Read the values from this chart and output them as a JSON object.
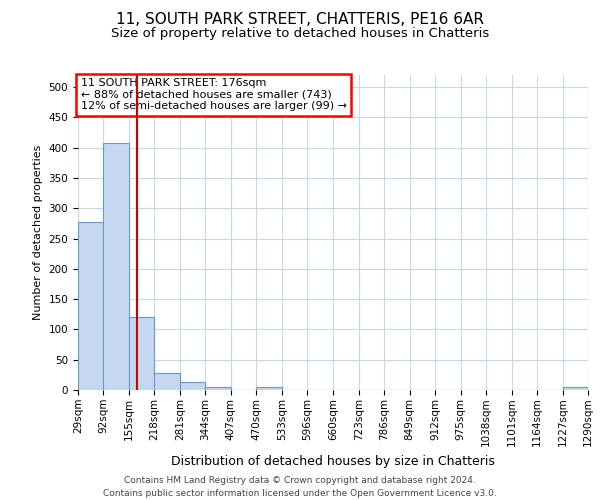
{
  "title1": "11, SOUTH PARK STREET, CHATTERIS, PE16 6AR",
  "title2": "Size of property relative to detached houses in Chatteris",
  "xlabel": "Distribution of detached houses by size in Chatteris",
  "ylabel": "Number of detached properties",
  "footer1": "Contains HM Land Registry data © Crown copyright and database right 2024.",
  "footer2": "Contains public sector information licensed under the Open Government Licence v3.0.",
  "annotation_line1": "11 SOUTH PARK STREET: 176sqm",
  "annotation_line2": "← 88% of detached houses are smaller (743)",
  "annotation_line3": "12% of semi-detached houses are larger (99) →",
  "property_size": 176,
  "bin_edges": [
    29,
    92,
    155,
    218,
    281,
    344,
    407,
    470,
    533,
    596,
    660,
    723,
    786,
    849,
    912,
    975,
    1038,
    1101,
    1164,
    1227,
    1290
  ],
  "bar_heights": [
    277,
    407,
    120,
    28,
    14,
    5,
    0,
    5,
    0,
    0,
    0,
    0,
    0,
    0,
    0,
    0,
    0,
    0,
    0,
    5
  ],
  "bar_color": "#c5d8f0",
  "bar_edge_color": "#6699cc",
  "marker_color": "#cc0000",
  "background_color": "#ffffff",
  "grid_color": "#c8d8e8",
  "title1_fontsize": 11,
  "title2_fontsize": 9.5,
  "ylabel_fontsize": 8,
  "xlabel_fontsize": 9,
  "tick_fontsize": 7.5,
  "footer_fontsize": 6.5,
  "annotation_fontsize": 8,
  "ylim": [
    0,
    520
  ],
  "yticks": [
    0,
    50,
    100,
    150,
    200,
    250,
    300,
    350,
    400,
    450,
    500
  ]
}
